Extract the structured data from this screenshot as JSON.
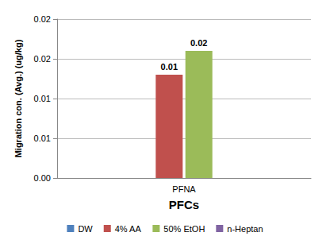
{
  "chart_data": {
    "type": "bar",
    "categories": [
      "PFNA"
    ],
    "series": [
      {
        "name": "DW",
        "color": "#4f81bd",
        "values": [
          null
        ],
        "value_labels": [
          null
        ]
      },
      {
        "name": "4% AA",
        "color": "#c0504d",
        "values": [
          0.013
        ],
        "value_labels": [
          "0.01"
        ]
      },
      {
        "name": "50% EtOH",
        "color": "#9bbb59",
        "values": [
          0.016
        ],
        "value_labels": [
          "0.02"
        ]
      },
      {
        "name": "n-Heptan",
        "color": "#8064a2",
        "values": [
          null
        ],
        "value_labels": [
          null
        ]
      }
    ],
    "x_label": "PFCs",
    "y_label": "Migration con. (Avg.) (ug/kg)",
    "ylim": [
      0,
      0.02
    ],
    "yticks": [
      {
        "value": 0,
        "label": "0.00"
      },
      {
        "value": 0.005,
        "label": "0.01"
      },
      {
        "value": 0.01,
        "label": "0.01"
      },
      {
        "value": 0.015,
        "label": "0.02"
      },
      {
        "value": 0.02,
        "label": "0.02"
      }
    ],
    "grid": true,
    "legend": "bottom",
    "data_labels": true
  }
}
